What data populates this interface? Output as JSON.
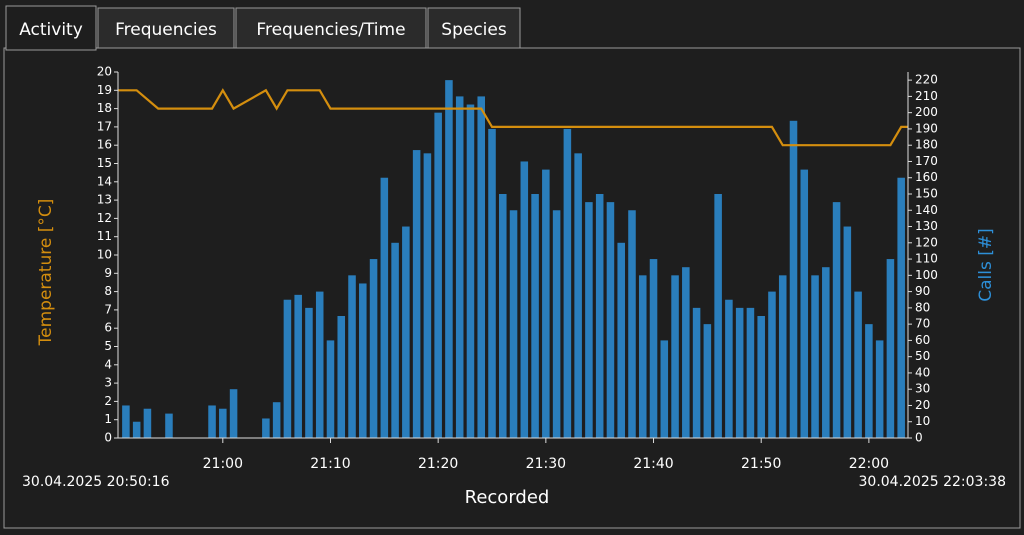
{
  "tabs": [
    "Activity",
    "Frequencies",
    "Frequencies/Time",
    "Species"
  ],
  "chart_data": {
    "type": "bar_line",
    "x_label": "Recorded",
    "y_label": "Temperature [°C]",
    "y2_label": "Calls [#]",
    "xlim": [
      "30.04.2025 20:50:16",
      "30.04.2025 22:03:38"
    ],
    "xticks": [
      "21:00",
      "21:10",
      "21:20",
      "21:30",
      "21:40",
      "21:50",
      "22:00"
    ],
    "ylim": [
      0,
      20
    ],
    "yticks": [
      0,
      1,
      2,
      3,
      4,
      5,
      6,
      7,
      8,
      9,
      10,
      11,
      12,
      13,
      14,
      15,
      16,
      17,
      18,
      19,
      20
    ],
    "y2lim": [
      0,
      225
    ],
    "y2ticks": [
      0,
      10,
      20,
      30,
      40,
      50,
      60,
      70,
      80,
      90,
      100,
      110,
      120,
      130,
      140,
      150,
      160,
      170,
      180,
      190,
      200,
      210,
      220
    ],
    "series": [
      {
        "name": "Calls [#]",
        "color": "#2d8fd8",
        "axis": "y2",
        "type": "bar",
        "x": [
          "20:51",
          "20:52",
          "20:53",
          "20:54",
          "20:55",
          "20:56",
          "20:57",
          "20:58",
          "20:59",
          "21:00",
          "21:01",
          "21:02",
          "21:03",
          "21:04",
          "21:05",
          "21:06",
          "21:07",
          "21:08",
          "21:09",
          "21:10",
          "21:11",
          "21:12",
          "21:13",
          "21:14",
          "21:15",
          "21:16",
          "21:17",
          "21:18",
          "21:19",
          "21:20",
          "21:21",
          "21:22",
          "21:23",
          "21:24",
          "21:25",
          "21:26",
          "21:27",
          "21:28",
          "21:29",
          "21:30",
          "21:31",
          "21:32",
          "21:33",
          "21:34",
          "21:35",
          "21:36",
          "21:37",
          "21:38",
          "21:39",
          "21:40",
          "21:41",
          "21:42",
          "21:43",
          "21:44",
          "21:45",
          "21:46",
          "21:47",
          "21:48",
          "21:49",
          "21:50",
          "21:51",
          "21:52",
          "21:53",
          "21:54",
          "21:55",
          "21:56",
          "21:57",
          "21:58",
          "21:59",
          "22:00",
          "22:01",
          "22:02",
          "22:03"
        ],
        "values": [
          20,
          10,
          18,
          0,
          15,
          0,
          0,
          0,
          20,
          18,
          30,
          0,
          0,
          12,
          22,
          85,
          88,
          80,
          90,
          60,
          75,
          100,
          95,
          110,
          160,
          120,
          130,
          177,
          175,
          200,
          220,
          210,
          205,
          210,
          190,
          150,
          140,
          170,
          150,
          165,
          140,
          190,
          175,
          145,
          150,
          145,
          120,
          140,
          100,
          110,
          60,
          100,
          105,
          80,
          70,
          150,
          85,
          80,
          80,
          75,
          90,
          100,
          195,
          165,
          100,
          105,
          145,
          130,
          90,
          70,
          60,
          110,
          160
        ]
      },
      {
        "name": "Temperature [°C]",
        "color": "#d48e0e",
        "axis": "y",
        "type": "line",
        "x": [
          "20:50:16",
          "20:52",
          "20:54",
          "20:59",
          "21:00",
          "21:01",
          "21:04",
          "21:05",
          "21:06",
          "21:09",
          "21:10",
          "21:24",
          "21:25",
          "21:51",
          "21:52",
          "22:02",
          "22:03",
          "22:03:38"
        ],
        "values": [
          19,
          19,
          18,
          18,
          19,
          18,
          19,
          18,
          19,
          19,
          18,
          18,
          17,
          17,
          16,
          16,
          17,
          17
        ]
      }
    ]
  }
}
